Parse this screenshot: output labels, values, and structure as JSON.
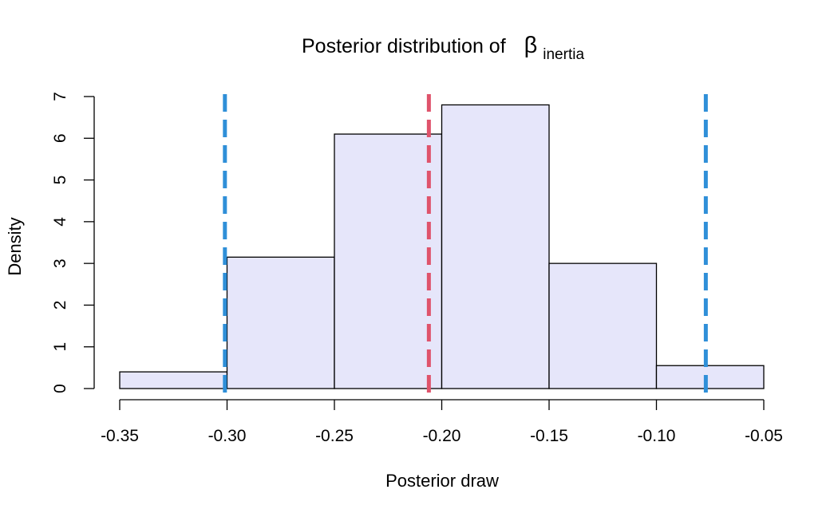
{
  "chart_data": {
    "type": "bar",
    "title": "Posterior distribution of",
    "title_symbol": "β",
    "title_subscript": "inertia",
    "xlabel": "Posterior draw",
    "ylabel": "Density",
    "xlim": [
      -0.35,
      -0.05
    ],
    "ylim": [
      0,
      7
    ],
    "x_ticks": [
      -0.35,
      -0.3,
      -0.25,
      -0.2,
      -0.15,
      -0.1,
      -0.05
    ],
    "x_tick_labels": [
      "-0.35",
      "-0.30",
      "-0.25",
      "-0.20",
      "-0.15",
      "-0.10",
      "-0.05"
    ],
    "y_ticks": [
      0,
      1,
      2,
      3,
      4,
      5,
      6,
      7
    ],
    "y_tick_labels": [
      "0",
      "1",
      "2",
      "3",
      "4",
      "5",
      "6",
      "7"
    ],
    "bins": [
      {
        "x0": -0.35,
        "x1": -0.3,
        "density": 0.4
      },
      {
        "x0": -0.3,
        "x1": -0.25,
        "density": 3.15
      },
      {
        "x0": -0.25,
        "x1": -0.2,
        "density": 6.1
      },
      {
        "x0": -0.2,
        "x1": -0.15,
        "density": 6.8
      },
      {
        "x0": -0.15,
        "x1": -0.1,
        "density": 3.0
      },
      {
        "x0": -0.1,
        "x1": -0.05,
        "density": 0.55
      }
    ],
    "reference_lines": [
      {
        "x": -0.301,
        "color": "#2f8fd8",
        "style": "dashed"
      },
      {
        "x": -0.206,
        "color": "#df536b",
        "style": "dashed"
      },
      {
        "x": -0.077,
        "color": "#2f8fd8",
        "style": "dashed"
      }
    ],
    "colors": {
      "bar_fill": "#e6e6fa",
      "bar_stroke": "#000000",
      "axis": "#000000"
    },
    "grid": false,
    "legend": "none"
  }
}
